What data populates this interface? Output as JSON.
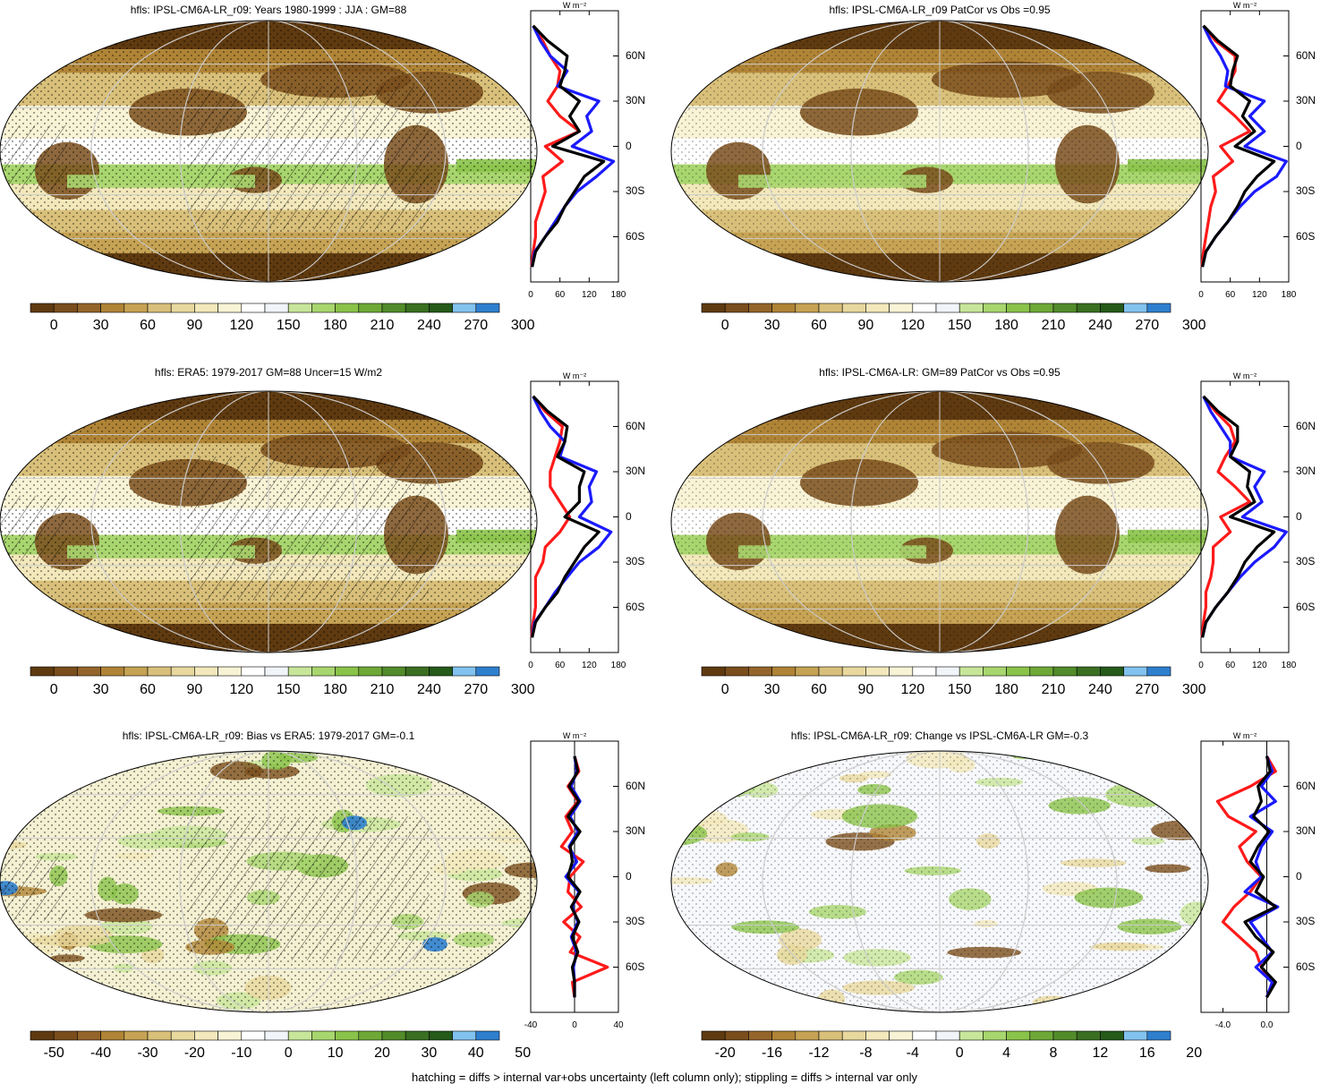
{
  "footer": "hatching = diffs > internal var+obs uncertainty (left column only); stippling = diffs > internal var only",
  "profile_unit": "W m⁻²",
  "lat_ticks": [
    "60N",
    "30N",
    "0",
    "30S",
    "60S"
  ],
  "colors": {
    "map_scale": [
      "#5f3a10",
      "#7a4e1c",
      "#94652b",
      "#b08436",
      "#c6a354",
      "#d9c07a",
      "#e8d89e",
      "#f2e8bb",
      "#f9f3d6",
      "#ffffff",
      "#f1f4f8",
      "#c8e69a",
      "#a8d66e",
      "#8ac34a",
      "#6ea938",
      "#528c2a",
      "#3a6f22",
      "#255a1a",
      "#82c2ee",
      "#2f7fcf"
    ],
    "obs_line": "#1a1aff",
    "model_line": "#000000",
    "diff_line": "#ff1a1a"
  },
  "chart_data": [
    {
      "type": "heatmap",
      "title": "hfls: IPSL-CM6A-LR_r09: Years 1980-1999 : JJA : GM=88",
      "colorbar_labels": [
        "0",
        "30",
        "60",
        "90",
        "120",
        "150",
        "180",
        "210",
        "240",
        "270",
        "300"
      ],
      "profile": {
        "xticks": [
          "0",
          "60",
          "120",
          "180"
        ],
        "xlim": [
          0,
          180
        ],
        "lat": [
          80,
          70,
          60,
          50,
          40,
          30,
          20,
          10,
          0,
          -10,
          -20,
          -30,
          -40,
          -50,
          -60,
          -70,
          -80
        ],
        "obs": [
          5,
          20,
          40,
          75,
          55,
          140,
          115,
          125,
          85,
          170,
          135,
          95,
          70,
          50,
          30,
          8,
          3
        ],
        "model": [
          5,
          35,
          75,
          70,
          60,
          100,
          80,
          100,
          45,
          150,
          110,
          90,
          70,
          55,
          30,
          10,
          3
        ],
        "diff": [
          5,
          25,
          40,
          60,
          55,
          35,
          60,
          100,
          30,
          65,
          25,
          30,
          20,
          10,
          10,
          5,
          2
        ]
      }
    },
    {
      "type": "heatmap",
      "title": "hfls: IPSL-CM6A-LR_r09 PatCor vs Obs =0.95",
      "colorbar_labels": [
        "0",
        "30",
        "60",
        "90",
        "120",
        "150",
        "180",
        "210",
        "240",
        "270",
        "300"
      ],
      "profile": {
        "xticks": [
          "0",
          "60",
          "120",
          "180"
        ],
        "xlim": [
          0,
          180
        ],
        "lat": [
          80,
          70,
          60,
          50,
          40,
          30,
          20,
          10,
          0,
          -10,
          -20,
          -30,
          -40,
          -50,
          -60,
          -70,
          -80
        ],
        "obs": [
          5,
          20,
          40,
          55,
          50,
          130,
          100,
          130,
          90,
          175,
          155,
          110,
          80,
          55,
          30,
          10,
          3
        ],
        "model": [
          5,
          35,
          75,
          65,
          60,
          100,
          85,
          110,
          70,
          150,
          115,
          90,
          75,
          55,
          30,
          10,
          3
        ],
        "diff": [
          5,
          30,
          70,
          70,
          55,
          35,
          70,
          100,
          40,
          65,
          25,
          30,
          20,
          15,
          10,
          5,
          2
        ]
      }
    },
    {
      "type": "heatmap",
      "title": "hfls: ERA5: 1979-2017 GM=88 Uncer=15 W/m2",
      "colorbar_labels": [
        "0",
        "30",
        "60",
        "90",
        "120",
        "150",
        "180",
        "210",
        "240",
        "270",
        "300"
      ],
      "profile": {
        "xticks": [
          "0",
          "60",
          "120",
          "180"
        ],
        "xlim": [
          0,
          180
        ],
        "lat": [
          80,
          70,
          60,
          50,
          40,
          30,
          20,
          10,
          0,
          -10,
          -20,
          -30,
          -40,
          -50,
          -60,
          -70,
          -80
        ],
        "obs": [
          5,
          20,
          40,
          70,
          60,
          135,
          120,
          125,
          100,
          165,
          140,
          100,
          75,
          50,
          30,
          8,
          3
        ],
        "model": [
          5,
          35,
          75,
          70,
          55,
          110,
          100,
          100,
          70,
          140,
          110,
          90,
          70,
          55,
          30,
          10,
          3
        ],
        "diff": [
          5,
          30,
          65,
          60,
          50,
          40,
          40,
          60,
          80,
          60,
          30,
          25,
          10,
          10,
          10,
          5,
          2
        ]
      }
    },
    {
      "type": "heatmap",
      "title": "hfls: IPSL-CM6A-LR: GM=89 PatCor vs Obs =0.95",
      "colorbar_labels": [
        "0",
        "30",
        "60",
        "90",
        "120",
        "150",
        "180",
        "210",
        "240",
        "270",
        "300"
      ],
      "profile": {
        "xticks": [
          "0",
          "60",
          "120",
          "180"
        ],
        "xlim": [
          0,
          180
        ],
        "lat": [
          80,
          70,
          60,
          50,
          40,
          30,
          20,
          10,
          0,
          -10,
          -20,
          -30,
          -40,
          -50,
          -60,
          -70,
          -80
        ],
        "obs": [
          5,
          20,
          40,
          60,
          60,
          130,
          110,
          125,
          85,
          175,
          150,
          110,
          80,
          55,
          30,
          10,
          3
        ],
        "model": [
          5,
          35,
          75,
          75,
          60,
          100,
          95,
          110,
          60,
          150,
          115,
          90,
          75,
          55,
          30,
          10,
          3
        ],
        "diff": [
          5,
          30,
          60,
          70,
          50,
          35,
          70,
          100,
          40,
          60,
          25,
          25,
          20,
          10,
          10,
          5,
          2
        ]
      }
    },
    {
      "type": "heatmap",
      "title": "hfls: IPSL-CM6A-LR_r09: Bias vs ERA5: 1979-2017 GM=-0.1",
      "colorbar_labels": [
        "-50",
        "-40",
        "-30",
        "-20",
        "-10",
        "0",
        "10",
        "20",
        "30",
        "40",
        "50"
      ],
      "profile": {
        "xticks": [
          "-40",
          "0",
          "40"
        ],
        "xlim": [
          -40,
          40
        ],
        "lat": [
          80,
          70,
          60,
          50,
          40,
          30,
          20,
          10,
          0,
          -10,
          -20,
          -30,
          -40,
          -50,
          -60,
          -70,
          -80
        ],
        "obs": [
          0,
          2,
          -3,
          5,
          -4,
          3,
          -5,
          2,
          -8,
          4,
          -2,
          3,
          -3,
          2,
          -1,
          0,
          0
        ],
        "model": [
          0,
          3,
          -5,
          4,
          -6,
          5,
          -4,
          -2,
          -6,
          5,
          -3,
          4,
          -2,
          3,
          -2,
          0,
          0
        ],
        "diff": [
          0,
          4,
          -6,
          3,
          -8,
          -2,
          -12,
          8,
          -4,
          -6,
          6,
          -10,
          5,
          -4,
          30,
          -2,
          0
        ]
      }
    },
    {
      "type": "heatmap",
      "title": "hfls: IPSL-CM6A-LR_r09: Change vs IPSL-CM6A-LR GM=-0.3",
      "colorbar_labels": [
        "-20",
        "-16",
        "-12",
        "-8",
        "-4",
        "0",
        "4",
        "8",
        "12",
        "16",
        "20"
      ],
      "profile": {
        "xticks": [
          "-4.0",
          "0.0"
        ],
        "xlim": [
          -6,
          2
        ],
        "lat": [
          80,
          70,
          60,
          50,
          40,
          30,
          20,
          10,
          0,
          -10,
          -20,
          -30,
          -40,
          -50,
          -60,
          -70,
          -80
        ],
        "obs": [
          0,
          0.5,
          -0.5,
          0.8,
          -1.5,
          0.5,
          -0.5,
          -1.0,
          -0.5,
          -2.0,
          1.0,
          -1.5,
          -0.5,
          0.5,
          -1.0,
          0.5,
          0
        ],
        "model": [
          0,
          0.3,
          -0.8,
          -0.5,
          -1.2,
          0.2,
          -0.8,
          -1.5,
          -0.3,
          -1.0,
          0.8,
          -2.0,
          -1.0,
          0.6,
          -0.5,
          0.8,
          0
        ],
        "diff": [
          0,
          0.8,
          -1.5,
          -4.5,
          -3.5,
          -1.0,
          -2.5,
          -1.8,
          -0.5,
          -1.5,
          -3.0,
          -4.0,
          -2.5,
          -1.0,
          -0.5,
          0.5,
          0
        ]
      }
    }
  ]
}
